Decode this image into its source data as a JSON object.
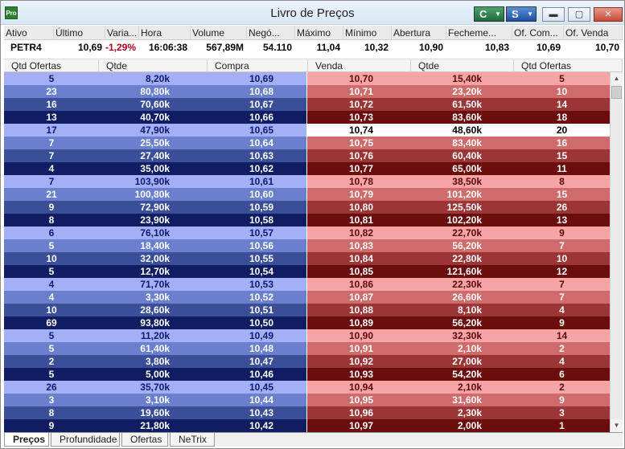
{
  "window": {
    "title": "Livro de Preços",
    "app_icon_label": "Pro",
    "btn_c": "C",
    "btn_s": "S",
    "min_icon": "▬",
    "max_icon": "▢",
    "close_icon": "✕"
  },
  "quote": {
    "headers": [
      "Ativo",
      "Último",
      "Varia...",
      "Hora",
      "Volume",
      "Negó...",
      "Máximo",
      "Mínimo",
      "Abertura",
      "Fecheme...",
      "Of. Com...",
      "Of. Venda"
    ],
    "values": [
      "PETR4",
      "10,69",
      "-1,29%",
      "16:06:38",
      "567,89M",
      "54.110",
      "11,04",
      "10,32",
      "10,90",
      "10,83",
      "10,69",
      "10,70"
    ]
  },
  "book": {
    "headers": [
      "Qtd Ofertas",
      "Qtde",
      "Compra",
      "Venda",
      "Qtde",
      "Qtd Ofertas"
    ],
    "rows": [
      [
        "5",
        "8,20k",
        "10,69",
        "10,70",
        "15,40k",
        "5"
      ],
      [
        "23",
        "80,80k",
        "10,68",
        "10,71",
        "23,20k",
        "10"
      ],
      [
        "16",
        "70,60k",
        "10,67",
        "10,72",
        "61,50k",
        "14"
      ],
      [
        "13",
        "40,70k",
        "10,66",
        "10,73",
        "83,60k",
        "18"
      ],
      [
        "17",
        "47,90k",
        "10,65",
        "10,74",
        "48,60k",
        "20"
      ],
      [
        "7",
        "25,50k",
        "10,64",
        "10,75",
        "83,40k",
        "16"
      ],
      [
        "7",
        "27,40k",
        "10,63",
        "10,76",
        "60,40k",
        "15"
      ],
      [
        "4",
        "35,00k",
        "10,62",
        "10,77",
        "65,00k",
        "11"
      ],
      [
        "7",
        "103,90k",
        "10,61",
        "10,78",
        "38,50k",
        "8"
      ],
      [
        "21",
        "100,80k",
        "10,60",
        "10,79",
        "101,20k",
        "15"
      ],
      [
        "9",
        "72,90k",
        "10,59",
        "10,80",
        "125,50k",
        "26"
      ],
      [
        "8",
        "23,90k",
        "10,58",
        "10,81",
        "102,20k",
        "13"
      ],
      [
        "6",
        "76,10k",
        "10,57",
        "10,82",
        "22,70k",
        "9"
      ],
      [
        "5",
        "18,40k",
        "10,56",
        "10,83",
        "56,20k",
        "7"
      ],
      [
        "10",
        "32,00k",
        "10,55",
        "10,84",
        "22,80k",
        "10"
      ],
      [
        "5",
        "12,70k",
        "10,54",
        "10,85",
        "121,60k",
        "12"
      ],
      [
        "4",
        "71,70k",
        "10,53",
        "10,86",
        "22,30k",
        "7"
      ],
      [
        "4",
        "3,30k",
        "10,52",
        "10,87",
        "26,60k",
        "7"
      ],
      [
        "10",
        "28,60k",
        "10,51",
        "10,88",
        "8,10k",
        "4"
      ],
      [
        "69",
        "93,80k",
        "10,50",
        "10,89",
        "56,20k",
        "9"
      ],
      [
        "5",
        "11,20k",
        "10,49",
        "10,90",
        "32,30k",
        "14"
      ],
      [
        "5",
        "61,40k",
        "10,48",
        "10,91",
        "2,10k",
        "2"
      ],
      [
        "2",
        "3,80k",
        "10,47",
        "10,92",
        "27,00k",
        "4"
      ],
      [
        "5",
        "5,00k",
        "10,46",
        "10,93",
        "54,20k",
        "6"
      ],
      [
        "26",
        "35,70k",
        "10,45",
        "10,94",
        "2,10k",
        "2"
      ],
      [
        "3",
        "3,10k",
        "10,44",
        "10,95",
        "31,60k",
        "9"
      ],
      [
        "8",
        "19,60k",
        "10,43",
        "10,96",
        "2,30k",
        "3"
      ],
      [
        "9",
        "21,80k",
        "10,42",
        "10,97",
        "2,00k",
        "1"
      ]
    ],
    "highlighted_ask_row": 4
  },
  "scrollbar": {
    "up_icon": "▲",
    "down_icon": "▼"
  },
  "tabs": [
    "Preços",
    "Profundidade",
    "Ofertas",
    "NeTrix"
  ],
  "colors": {
    "bid_shades": [
      "#a4b0f6",
      "#6b7fcf",
      "#3b4f99",
      "#101d63"
    ],
    "ask_shades": [
      "#f6a4a4",
      "#cf6b6b",
      "#9c3535",
      "#6b0d0d"
    ],
    "negative": "#b00020"
  }
}
